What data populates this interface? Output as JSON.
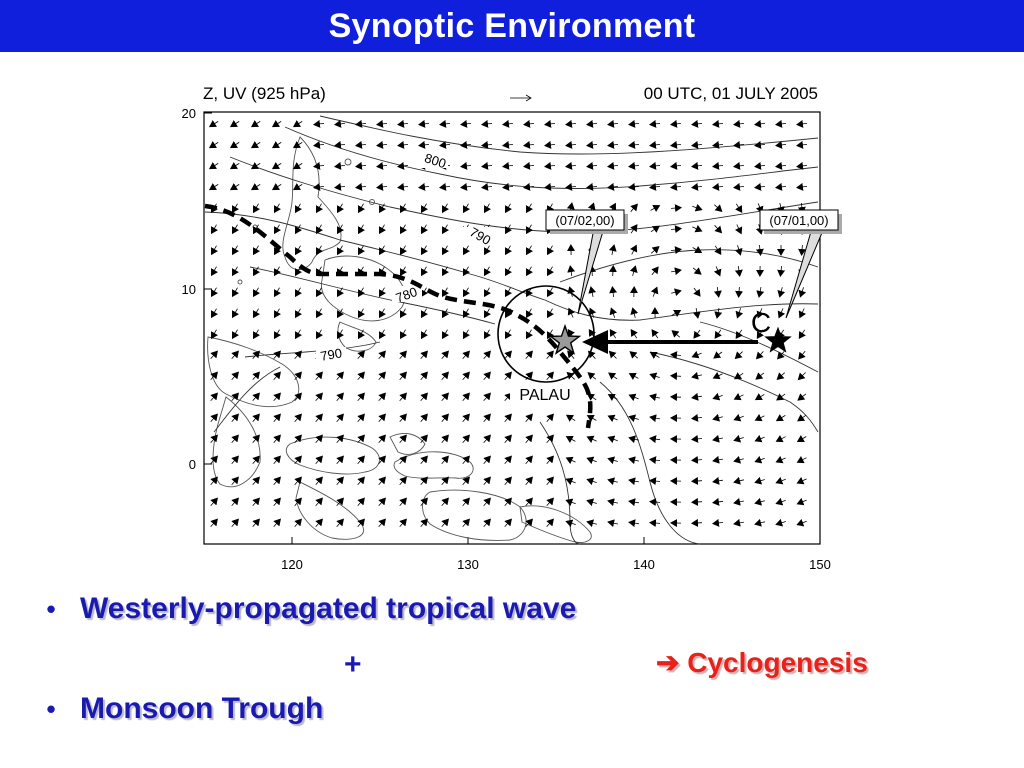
{
  "slide": {
    "title": "Synoptic Environment"
  },
  "map": {
    "header_left": "Z, UV (925 hPa)",
    "header_right": "00 UTC,  01 JULY 2005",
    "y_ticks": [
      "20",
      "10",
      "0"
    ],
    "x_ticks": [
      "120",
      "130",
      "140",
      "150"
    ],
    "contour_labels": [
      "800",
      "790",
      "780",
      "790"
    ],
    "callout_left": "(07/02,00)",
    "callout_right": "(07/01,00)",
    "center_marker": "C",
    "place_label": "PALAU",
    "colors": {
      "frame": "#000000",
      "contour": "#333333",
      "trough": "#000000",
      "gray_star": "#9a9a9a"
    }
  },
  "bullets": {
    "item1": "Westerly-propagated tropical wave",
    "plus": "+",
    "item2": "Monsoon Trough",
    "result_arrow": "➔",
    "result": "Cyclogenesis",
    "colors": {
      "text": "#1a1ab0",
      "result": "#e8211a"
    }
  }
}
